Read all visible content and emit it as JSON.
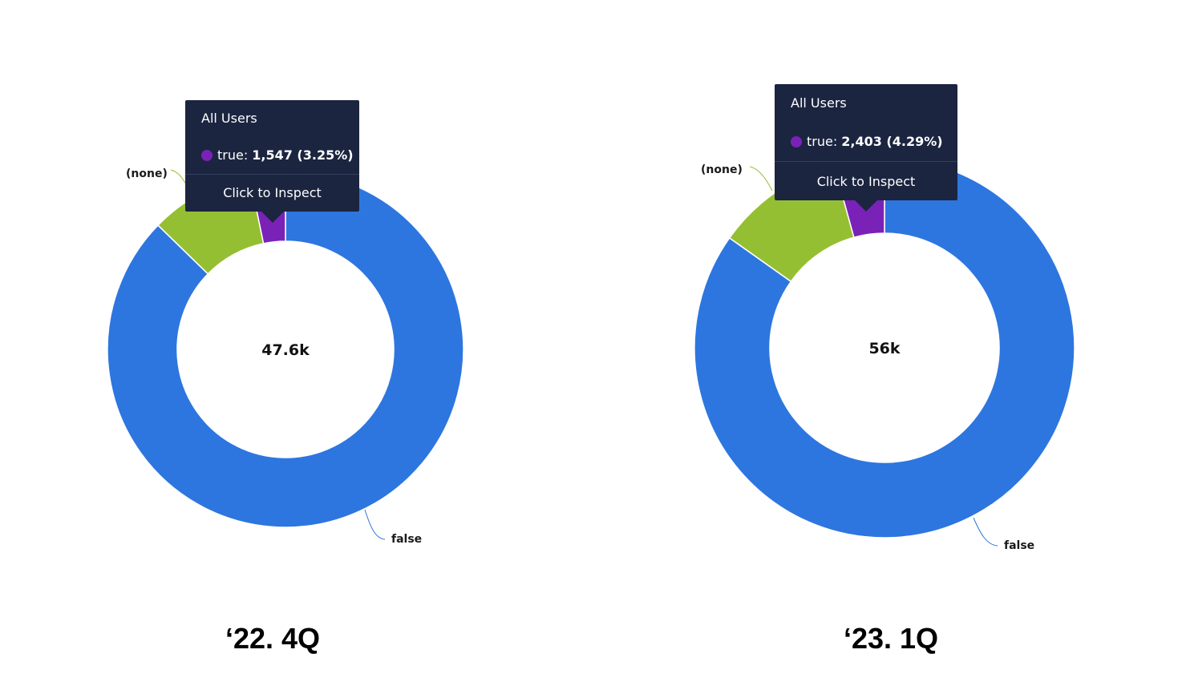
{
  "colors": {
    "false": "#2d76df",
    "none": "#95bf32",
    "true": "#7a22b8",
    "tooltip_bg": "#1b2540"
  },
  "chart_data": [
    {
      "type": "pie",
      "subtype": "donut",
      "period_label": "‘22. 4Q",
      "center_label": "47.6k",
      "slices": [
        {
          "name": "true",
          "value": 1547,
          "percent": 3.25,
          "color": "#7a22b8"
        },
        {
          "name": "false",
          "value": 41550,
          "percent": 87.3,
          "color": "#2d76df",
          "label": "false"
        },
        {
          "name": "(none)",
          "value": 4500,
          "percent": 9.45,
          "color": "#95bf32",
          "label": "(none)"
        }
      ],
      "tooltip": {
        "title": "All Users",
        "series_name": "true:",
        "series_value": "1,547 (3.25%)",
        "action": "Click to Inspect"
      }
    },
    {
      "type": "pie",
      "subtype": "donut",
      "period_label": "‘23. 1Q",
      "center_label": "56k",
      "slices": [
        {
          "name": "true",
          "value": 2403,
          "percent": 4.29,
          "color": "#7a22b8"
        },
        {
          "name": "false",
          "value": 47500,
          "percent": 84.8,
          "color": "#2d76df",
          "label": "false"
        },
        {
          "name": "(none)",
          "value": 6100,
          "percent": 10.9,
          "color": "#95bf32",
          "label": "(none)"
        }
      ],
      "tooltip": {
        "title": "All Users",
        "series_name": "true:",
        "series_value": "2,403 (4.29%)",
        "action": "Click to Inspect"
      }
    }
  ]
}
